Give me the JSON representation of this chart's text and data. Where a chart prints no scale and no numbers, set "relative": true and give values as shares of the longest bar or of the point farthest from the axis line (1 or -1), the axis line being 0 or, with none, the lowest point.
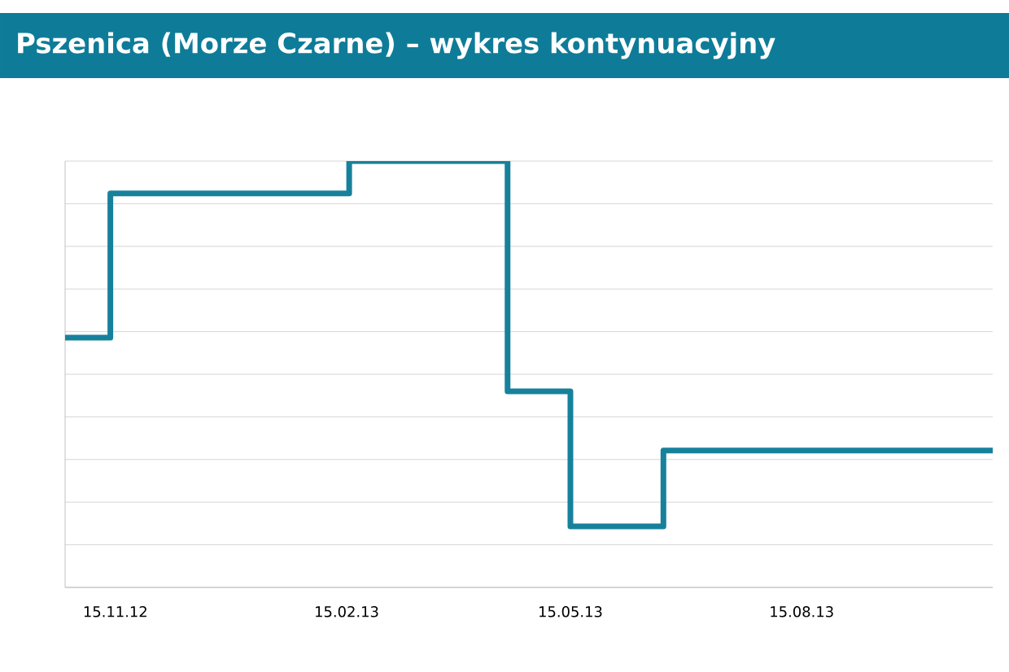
{
  "chart_data": {
    "type": "step",
    "title": "Pszenica (Morze Czarne) – wykres kontynuacyjny",
    "relative": true,
    "grid": "y",
    "color": "#17819c",
    "x": [
      "2012-10-26",
      "2012-11-13",
      "2013-02-16",
      "2013-04-20",
      "2013-05-15",
      "2013-06-21",
      "2013-10-30"
    ],
    "values": [
      0.586,
      0.924,
      1,
      0.46,
      0.143,
      0.321,
      0.321
    ],
    "xlim": [
      "2012-10-26",
      "2013-10-30"
    ],
    "xticks": [
      {
        "value": "2012-11-15",
        "label": "15.11.12"
      },
      {
        "value": "2013-02-15",
        "label": "15.02.13"
      },
      {
        "value": "2013-05-15",
        "label": "15.05.13"
      },
      {
        "value": "2013-08-15",
        "label": "15.08.13"
      }
    ]
  }
}
